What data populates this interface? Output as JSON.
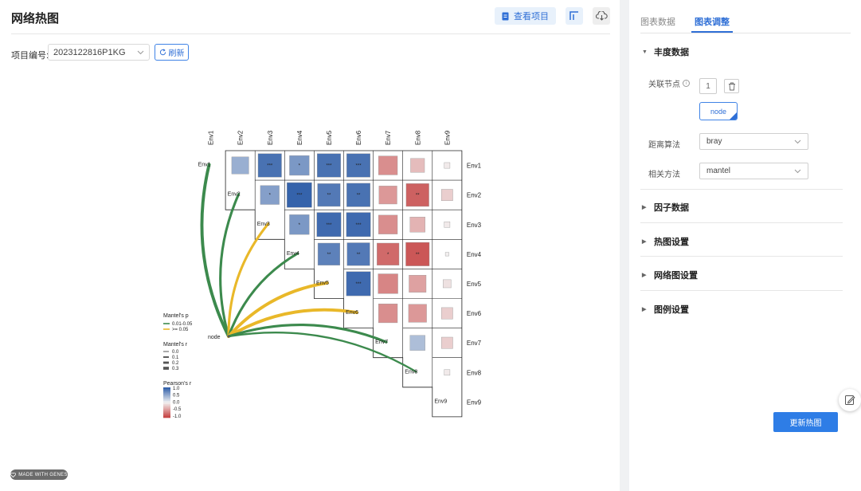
{
  "header": {
    "title": "网络热图",
    "view_project_label": "查看项目",
    "fullscreen_icon": "fullscreen-icon",
    "download_icon": "cloud-download-icon"
  },
  "toolbar": {
    "project_label": "项目编号:",
    "project_value": "2023122816P1KG",
    "refresh_label": "刷新"
  },
  "chart_data": {
    "type": "heatmap",
    "row_labels": [
      "Env1",
      "Env2",
      "Env3",
      "Env4",
      "Env5",
      "Env6",
      "Env7",
      "Env8",
      "Env9"
    ],
    "col_labels": [
      "Env1",
      "Env2",
      "Env3",
      "Env4",
      "Env5",
      "Env6",
      "Env7",
      "Env8",
      "Env9"
    ],
    "cells": [
      {
        "r": 0,
        "c": 1,
        "v": 0.45,
        "sig": ""
      },
      {
        "r": 0,
        "c": 2,
        "v": 0.85,
        "sig": "***"
      },
      {
        "r": 0,
        "c": 3,
        "v": 0.6,
        "sig": "*"
      },
      {
        "r": 0,
        "c": 4,
        "v": 0.85,
        "sig": "***"
      },
      {
        "r": 0,
        "c": 5,
        "v": 0.85,
        "sig": "***"
      },
      {
        "r": 0,
        "c": 6,
        "v": -0.55,
        "sig": ""
      },
      {
        "r": 0,
        "c": 7,
        "v": -0.3,
        "sig": ""
      },
      {
        "r": 0,
        "c": 8,
        "v": -0.05,
        "sig": ""
      },
      {
        "r": 1,
        "c": 2,
        "v": 0.55,
        "sig": "*"
      },
      {
        "r": 1,
        "c": 3,
        "v": 0.95,
        "sig": "***"
      },
      {
        "r": 1,
        "c": 4,
        "v": 0.8,
        "sig": "**"
      },
      {
        "r": 1,
        "c": 5,
        "v": 0.85,
        "sig": "**"
      },
      {
        "r": 1,
        "c": 6,
        "v": -0.5,
        "sig": ""
      },
      {
        "r": 1,
        "c": 7,
        "v": -0.8,
        "sig": "**"
      },
      {
        "r": 1,
        "c": 8,
        "v": -0.2,
        "sig": ""
      },
      {
        "r": 2,
        "c": 3,
        "v": 0.6,
        "sig": "*"
      },
      {
        "r": 2,
        "c": 4,
        "v": 0.9,
        "sig": "***"
      },
      {
        "r": 2,
        "c": 5,
        "v": 0.9,
        "sig": "***"
      },
      {
        "r": 2,
        "c": 6,
        "v": -0.55,
        "sig": ""
      },
      {
        "r": 2,
        "c": 7,
        "v": -0.35,
        "sig": ""
      },
      {
        "r": 2,
        "c": 8,
        "v": -0.05,
        "sig": ""
      },
      {
        "r": 3,
        "c": 4,
        "v": 0.75,
        "sig": "**"
      },
      {
        "r": 3,
        "c": 5,
        "v": 0.8,
        "sig": "**"
      },
      {
        "r": 3,
        "c": 6,
        "v": -0.75,
        "sig": "*"
      },
      {
        "r": 3,
        "c": 7,
        "v": -0.85,
        "sig": "**"
      },
      {
        "r": 3,
        "c": 8,
        "v": -0.02,
        "sig": ""
      },
      {
        "r": 4,
        "c": 5,
        "v": 0.9,
        "sig": "***"
      },
      {
        "r": 4,
        "c": 6,
        "v": -0.6,
        "sig": ""
      },
      {
        "r": 4,
        "c": 7,
        "v": -0.45,
        "sig": ""
      },
      {
        "r": 4,
        "c": 8,
        "v": -0.1,
        "sig": ""
      },
      {
        "r": 5,
        "c": 6,
        "v": -0.55,
        "sig": ""
      },
      {
        "r": 5,
        "c": 7,
        "v": -0.5,
        "sig": ""
      },
      {
        "r": 5,
        "c": 8,
        "v": -0.2,
        "sig": ""
      },
      {
        "r": 6,
        "c": 7,
        "v": 0.35,
        "sig": ""
      },
      {
        "r": 6,
        "c": 8,
        "v": -0.2,
        "sig": ""
      },
      {
        "r": 7,
        "c": 8,
        "v": -0.05,
        "sig": ""
      }
    ],
    "network": {
      "source": "node",
      "links": [
        {
          "to": "Env1",
          "p": "0.01-0.05",
          "r": 0.3
        },
        {
          "to": "Env2",
          "p": "0.01-0.05",
          "r": 0.2
        },
        {
          "to": "Env3",
          "p": ">= 0.05",
          "r": 0.2
        },
        {
          "to": "Env4",
          "p": "0.01-0.05",
          "r": 0.2
        },
        {
          "to": "Env5",
          "p": ">= 0.05",
          "r": 0.3
        },
        {
          "to": "Env6",
          "p": ">= 0.05",
          "r": 0.3
        },
        {
          "to": "Env7",
          "p": "0.01-0.05",
          "r": 0.2
        },
        {
          "to": "Env8",
          "p": "0.01-0.05",
          "r": 0.1
        },
        {
          "to": "Env9",
          "p": "0.01-0.05",
          "r": 0.0
        }
      ]
    },
    "legend": {
      "mantel_p_title": "Mantel's p",
      "mantel_p_items": [
        {
          "label": "0.01-0.05",
          "color": "#3c8a4d"
        },
        {
          "label": ">= 0.05",
          "color": "#e9b829"
        }
      ],
      "mantel_r_title": "Mantel's r",
      "mantel_r_items": [
        "0.0",
        "0.1",
        "0.2",
        "0.3"
      ],
      "pearson_title": "Pearson's r",
      "pearson_ticks": [
        "1.0",
        "0.5",
        "0.0",
        "-0.5",
        "-1.0"
      ]
    },
    "colors": {
      "positive": "#2b5ba7",
      "negative": "#c43c3c",
      "neutral": "#f3f3f3",
      "p_sig": "#3c8a4d",
      "p_ns": "#e9b829"
    }
  },
  "badge": {
    "label": "MADE WITH GENES"
  },
  "sidebar": {
    "tabs": [
      "图表数据",
      "图表调整"
    ],
    "sections": {
      "abundance": {
        "title": "丰度数据",
        "node_label": "关联节点",
        "node_input": "1",
        "node_tag": "node",
        "distance_label": "距离算法",
        "distance_value": "bray",
        "correlation_label": "相关方法",
        "correlation_value": "mantel"
      },
      "factor": {
        "title": "因子数据"
      },
      "heatmap": {
        "title": "热图设置"
      },
      "network": {
        "title": "网络图设置"
      },
      "legend": {
        "title": "图例设置"
      }
    },
    "update_button": "更新热图",
    "float_icon": "edit-note-icon"
  }
}
